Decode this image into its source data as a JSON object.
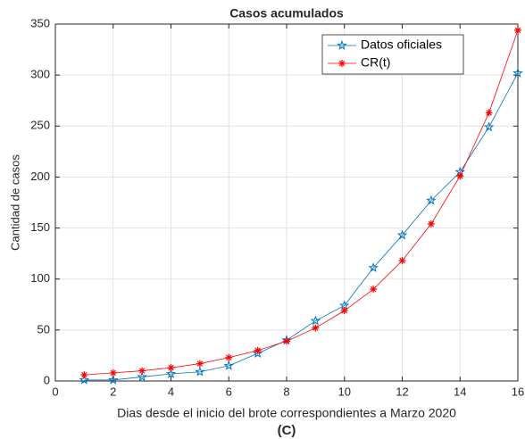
{
  "chart_data": {
    "type": "line",
    "title": "Casos acumulados",
    "xlabel": "Dias desde el inicio del brote correspondientes a Marzo 2020",
    "ylabel": "Cantidad de casos",
    "caption": "(C)",
    "x": [
      1,
      2,
      3,
      4,
      5,
      6,
      7,
      8,
      9,
      10,
      11,
      12,
      13,
      14,
      15,
      16
    ],
    "series": [
      {
        "name": "Datos oficiales",
        "color": "#0072bd",
        "marker": "pentagram",
        "values": [
          1,
          1,
          4,
          7,
          9,
          15,
          27,
          40,
          59,
          74,
          111,
          143,
          177,
          205,
          249,
          302
        ]
      },
      {
        "name": "CR(t)",
        "color": "#ff0000",
        "marker": "asterisk",
        "values": [
          6,
          8,
          10,
          13,
          17,
          23,
          30,
          39,
          52,
          69,
          90,
          118,
          154,
          201,
          263,
          344
        ]
      }
    ],
    "xlim": [
      0,
      16
    ],
    "xticks": [
      0,
      2,
      4,
      6,
      8,
      10,
      12,
      14,
      16
    ],
    "ylim": [
      0,
      350
    ],
    "yticks": [
      0,
      50,
      100,
      150,
      200,
      250,
      300,
      350
    ],
    "grid": true,
    "legend": "top-right"
  }
}
